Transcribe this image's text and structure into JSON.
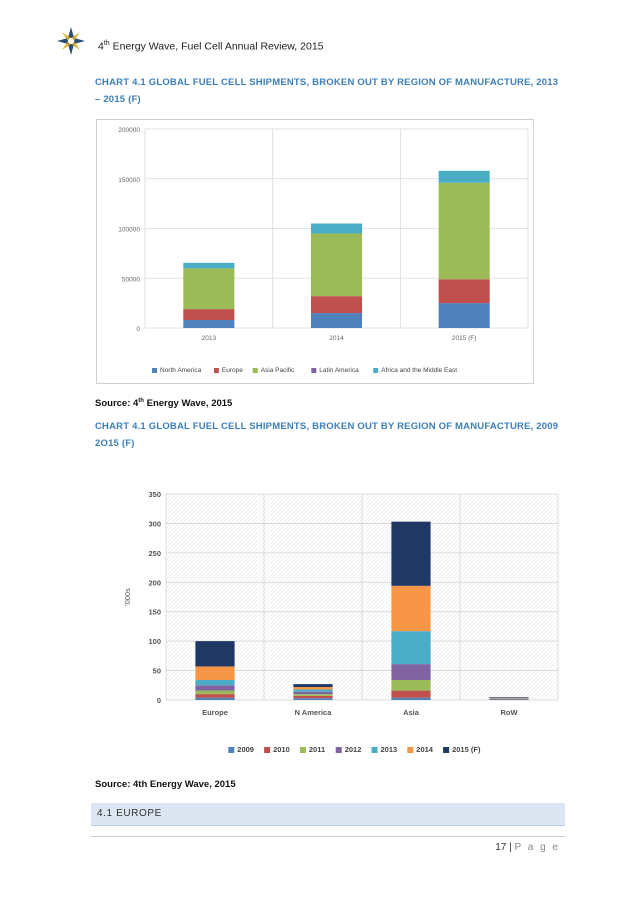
{
  "header": {
    "prefix": "4",
    "suffix": "th",
    "text": " Energy Wave, Fuel Cell Annual Review, 2015"
  },
  "captions": {
    "chart1": "CHART 4.1 GLOBAL FUEL CELL SHIPMENTS, BROKEN OUT BY REGION OF MANUFACTURE, 2013 – 2015 (F)",
    "chart2": "CHART 4.1 GLOBAL FUEL CELL SHIPMENTS, BROKEN OUT BY REGION OF MANUFACTURE, 2009 2O15 (F)"
  },
  "sources": {
    "source1_prefix": "Source: 4",
    "source1_sup": "th",
    "source1_suffix": " Energy Wave, 2015",
    "source2": "Source: 4th Energy Wave, 2015"
  },
  "section": {
    "title": "4.1 EUROPE"
  },
  "footer": {
    "page_number": "17",
    "sep": " | ",
    "page_word": "P a g e"
  },
  "chart_data": [
    {
      "type": "bar",
      "stacked": true,
      "title": "",
      "categories": [
        "2013",
        "2014",
        "2015 (F)"
      ],
      "series": [
        {
          "name": "North America",
          "color": "#4f81bd",
          "values": [
            8000,
            15000,
            25000
          ]
        },
        {
          "name": "Europe",
          "color": "#c0504d",
          "values": [
            11000,
            17000,
            24000
          ]
        },
        {
          "name": "Asia Pacific",
          "color": "#9bbb59",
          "values": [
            41000,
            63000,
            97000
          ]
        },
        {
          "name": "Latin America",
          "color": "#8064a2",
          "values": [
            0,
            0,
            0
          ]
        },
        {
          "name": "Africa and the Middle East",
          "color": "#4bacc6",
          "values": [
            5500,
            10000,
            12000
          ]
        }
      ],
      "ylim": [
        0,
        200000
      ],
      "yticks": [
        "0",
        "50000",
        "100000",
        "150000",
        "200000"
      ],
      "xlabel": "",
      "ylabel": "",
      "legend": "bottom"
    },
    {
      "type": "bar",
      "stacked": true,
      "title": "",
      "categories": [
        "Europe",
        "N America",
        "Asia",
        "RoW"
      ],
      "series": [
        {
          "name": "2009",
          "color": "#4f81bd",
          "values": [
            4,
            3,
            4,
            1
          ]
        },
        {
          "name": "2010",
          "color": "#c0504d",
          "values": [
            6,
            4,
            12,
            1
          ]
        },
        {
          "name": "2011",
          "color": "#9bbb59",
          "values": [
            6,
            3,
            18,
            0.5
          ]
        },
        {
          "name": "2012",
          "color": "#8064a2",
          "values": [
            9,
            4,
            27,
            0.5
          ]
        },
        {
          "name": "2013",
          "color": "#4bacc6",
          "values": [
            9,
            4,
            56,
            0.5
          ]
        },
        {
          "name": "2014",
          "color": "#f79646",
          "values": [
            23,
            4,
            77,
            0.5
          ]
        },
        {
          "name": "2015 (F)",
          "color": "#1f3864",
          "values": [
            43,
            5,
            109,
            1
          ]
        }
      ],
      "ylim": [
        0,
        350
      ],
      "yticks": [
        "0",
        "50",
        "100",
        "150",
        "200",
        "250",
        "300",
        "350"
      ],
      "xlabel": "",
      "ylabel": "'000s",
      "legend": "bottom"
    }
  ]
}
